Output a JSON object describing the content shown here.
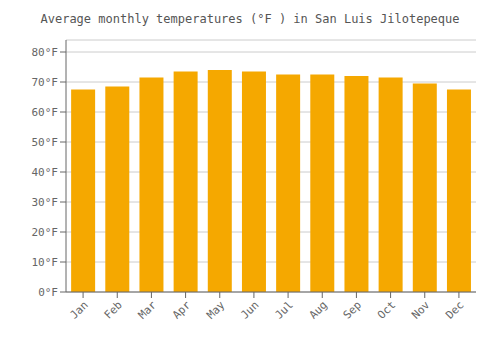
{
  "chart_data": {
    "type": "bar",
    "title": "Average monthly temperatures (°F ) in San Luis Jilotepeque",
    "categories": [
      "Jan",
      "Feb",
      "Mar",
      "Apr",
      "May",
      "Jun",
      "Jul",
      "Aug",
      "Sep",
      "Oct",
      "Nov",
      "Dec"
    ],
    "values": [
      67.5,
      68.5,
      71.5,
      73.5,
      74.0,
      73.5,
      72.5,
      72.5,
      72.0,
      71.5,
      69.5,
      67.5
    ],
    "color": "#F5A800",
    "ylim": [
      0,
      84
    ],
    "yticks": [
      {
        "value": 0,
        "label": "0°F"
      },
      {
        "value": 10,
        "label": "10°F"
      },
      {
        "value": 20,
        "label": "20°F"
      },
      {
        "value": 30,
        "label": "30°F"
      },
      {
        "value": 40,
        "label": "40°F"
      },
      {
        "value": 50,
        "label": "50°F"
      },
      {
        "value": 60,
        "label": "60°F"
      },
      {
        "value": 70,
        "label": "70°F"
      },
      {
        "value": 80,
        "label": "80°F"
      }
    ],
    "grid": true
  }
}
